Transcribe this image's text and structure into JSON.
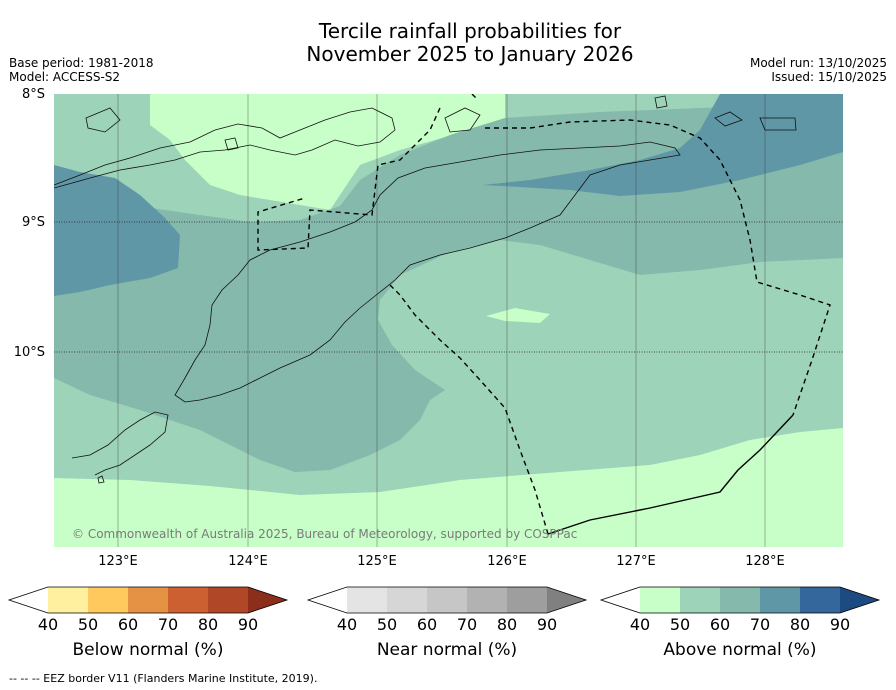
{
  "title_line1": "Tercile rainfall probabilities for",
  "title_line2": "November 2025 to January 2026",
  "meta": {
    "base_period": "Base period: 1981-2018",
    "model": "Model: ACCESS-S2",
    "model_run": "Model run: 13/10/2025",
    "issued": "Issued: 15/10/2025"
  },
  "axes": {
    "lat_labels": [
      "8°S",
      "9°S",
      "10°S"
    ],
    "lon_labels": [
      "123°E",
      "124°E",
      "125°E",
      "126°E",
      "127°E",
      "128°E"
    ]
  },
  "copyright": "© Commonwealth of Australia 2025, Bureau of Meteorology, supported by COSPPac",
  "colorbars": [
    {
      "name": "below",
      "title": "Below normal (%)",
      "ticks": [
        "40",
        "50",
        "60",
        "70",
        "80",
        "90"
      ],
      "colors": [
        "#ffffff",
        "#fff0a0",
        "#ffc95e",
        "#e59244",
        "#cc6030",
        "#b04828",
        "#8b2e1c"
      ]
    },
    {
      "name": "near",
      "title": "Near normal (%)",
      "ticks": [
        "40",
        "50",
        "60",
        "70",
        "80",
        "90"
      ],
      "colors": [
        "#ffffff",
        "#e4e4e4",
        "#d6d6d6",
        "#c6c6c6",
        "#b2b2b2",
        "#9e9e9e",
        "#808080"
      ]
    },
    {
      "name": "above",
      "title": "Above normal (%)",
      "ticks": [
        "40",
        "50",
        "60",
        "70",
        "80",
        "90"
      ],
      "colors": [
        "#ffffff",
        "#c8ffc8",
        "#9dd3b8",
        "#84b9ab",
        "#5f97a6",
        "#34679c",
        "#1d4a80"
      ]
    }
  ],
  "footnote": "--  --  -- EEZ border V11 (Flanders Marine Institute, 2019)."
}
